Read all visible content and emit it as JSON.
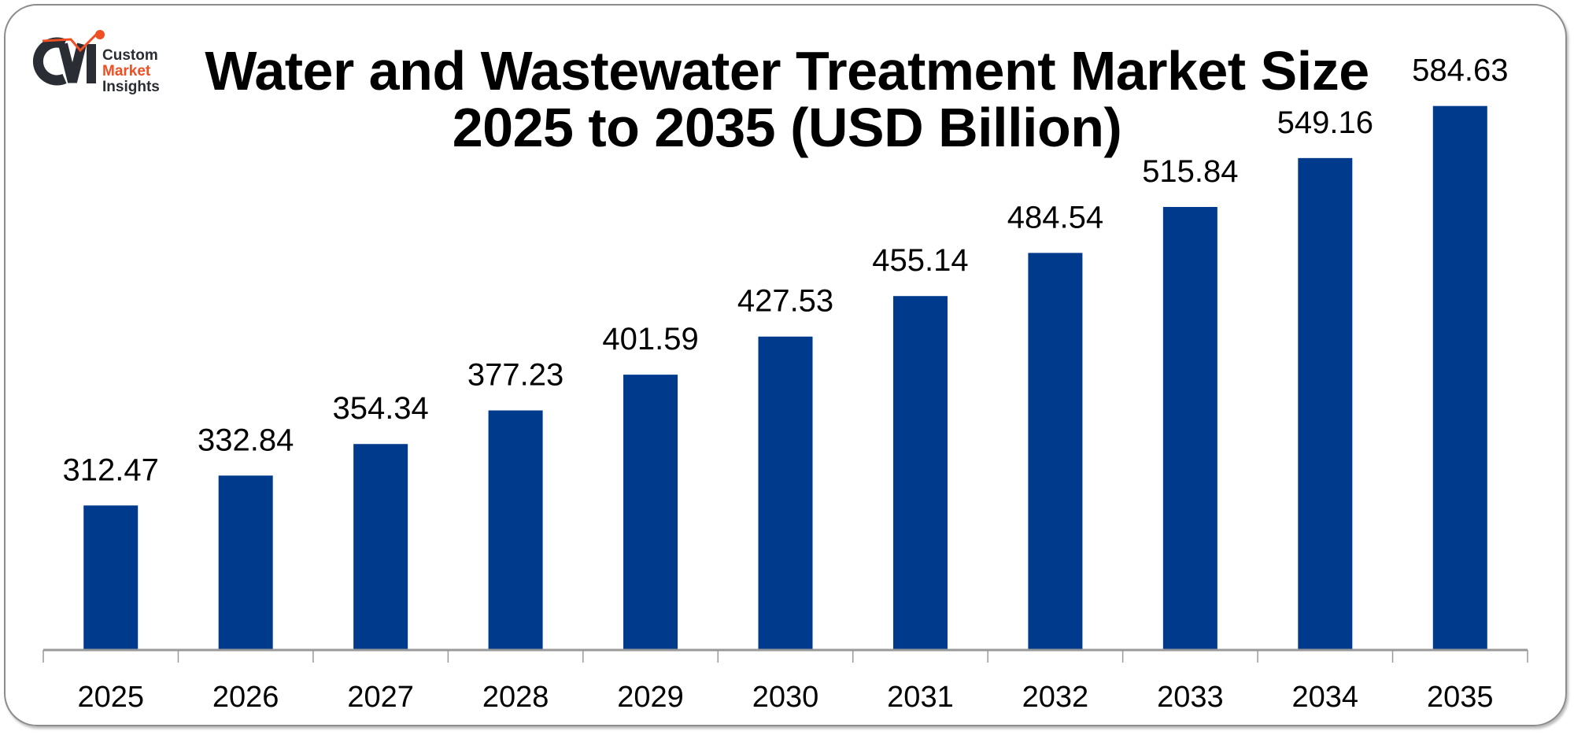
{
  "logo": {
    "line1": "Custom",
    "line2": "Market",
    "line3": "Insights",
    "mark": "CMI"
  },
  "colors": {
    "bar": "#003A8C",
    "axis": "#999999",
    "logo_dark": "#2a2d34",
    "logo_accent": "#f04e23"
  },
  "chart_data": {
    "type": "bar",
    "title": "Water and Wastewater Treatment Market Size 2025 to 2035 (USD Billion)",
    "title_lines": [
      "Water and Wastewater Treatment Market Size",
      "2025 to 2035 (USD Billion)"
    ],
    "categories": [
      "2025",
      "2026",
      "2027",
      "2028",
      "2029",
      "2030",
      "2031",
      "2032",
      "2033",
      "2034",
      "2035"
    ],
    "values": [
      312.47,
      332.84,
      354.34,
      377.23,
      401.59,
      427.53,
      455.14,
      484.54,
      515.84,
      549.16,
      584.63
    ],
    "labels": [
      "312.47",
      "332.84",
      "354.34",
      "377.23",
      "401.59",
      "427.53",
      "455.14",
      "484.54",
      "515.84",
      "549.16",
      "584.63"
    ],
    "xlabel": "",
    "ylabel": "",
    "ylim": [
      214,
      585
    ],
    "grid": false,
    "legend": "none"
  }
}
